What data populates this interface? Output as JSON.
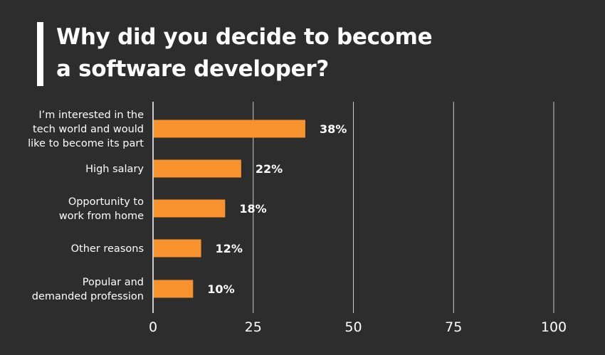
{
  "title": {
    "line1": "Why did you decide to become",
    "line2": "a software developer?"
  },
  "colors": {
    "background": "#2d2d2d",
    "bar": "#f7922c",
    "text": "#ffffff",
    "grid": "#ffffff"
  },
  "chart_data": {
    "type": "bar",
    "orientation": "horizontal",
    "categories": [
      [
        "I’m interested in the",
        "tech world and would",
        "like to become its part"
      ],
      [
        "High salary"
      ],
      [
        "Opportunity to",
        "work from home"
      ],
      [
        "Other reasons"
      ],
      [
        "Popular and",
        "demanded profession"
      ]
    ],
    "values": [
      38,
      22,
      18,
      12,
      10
    ],
    "value_labels": [
      "38%",
      "22%",
      "18%",
      "12%",
      "10%"
    ],
    "xlim": [
      0,
      100
    ],
    "xticks": [
      0,
      25,
      50,
      75,
      100
    ],
    "xtick_labels": [
      "0",
      "25",
      "50",
      "75",
      "100"
    ],
    "grid": true
  }
}
